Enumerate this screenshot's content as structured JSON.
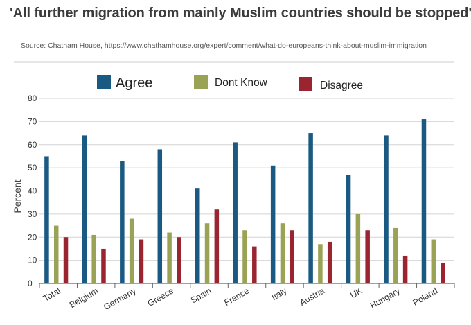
{
  "header": {
    "title": "'All further migration from mainly Muslim countries should be stopped'",
    "source": "Source: Chatham House, https://www.chathamhouse.org/expert/comment/what-do-europeans-think-about-muslim-immigration"
  },
  "colors": {
    "agree": "#1a5a82",
    "dont_know": "#9aa255",
    "disagree": "#9a2530",
    "grid": "#d4d4d4",
    "axis": "#666666"
  },
  "chart_data": {
    "type": "bar",
    "title": "'All further migration from mainly Muslim countries should be stopped'",
    "xlabel": "",
    "ylabel": "Percent",
    "ylim": [
      0,
      80
    ],
    "yticks": [
      0,
      10,
      20,
      30,
      40,
      50,
      60,
      70,
      80
    ],
    "grid": true,
    "legend_position": "top",
    "categories": [
      "Total",
      "Belgium",
      "Germany",
      "Greece",
      "Spain",
      "France",
      "Italy",
      "Austria",
      "UK",
      "Hungary",
      "Poland"
    ],
    "series": [
      {
        "name": "Agree",
        "color": "#1a5a82",
        "values": [
          55,
          64,
          53,
          58,
          41,
          61,
          51,
          65,
          47,
          64,
          71
        ]
      },
      {
        "name": "Dont Know",
        "color": "#9aa255",
        "values": [
          25,
          21,
          28,
          22,
          26,
          23,
          26,
          17,
          30,
          24,
          19
        ]
      },
      {
        "name": "Disagree",
        "color": "#9a2530",
        "values": [
          20,
          15,
          19,
          20,
          32,
          16,
          23,
          18,
          23,
          12,
          9
        ]
      }
    ]
  }
}
